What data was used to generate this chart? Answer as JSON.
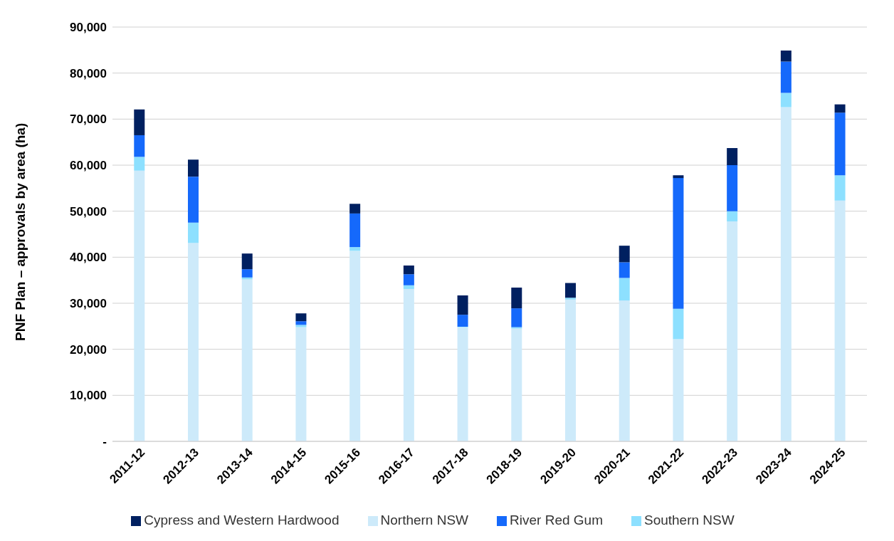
{
  "chart_data": {
    "type": "bar",
    "stacked": true,
    "ylabel": "PNF Plan – approvals by area (ha)",
    "categories": [
      "2011-12",
      "2012-13",
      "2013-14",
      "2014-15",
      "2015-16",
      "2016-17",
      "2017-18",
      "2018-19",
      "2019-20",
      "2020-21",
      "2021-22",
      "2022-23",
      "2023-24",
      "2024-25"
    ],
    "series": [
      {
        "name": "Northern NSW",
        "color": "#cdeafa",
        "values": [
          58800,
          43100,
          35200,
          24800,
          41400,
          33100,
          24800,
          24500,
          30800,
          30600,
          22200,
          47800,
          72600,
          52300
        ]
      },
      {
        "name": "Southern NSW",
        "color": "#8de0ff",
        "values": [
          3000,
          4400,
          400,
          500,
          800,
          800,
          100,
          300,
          400,
          4900,
          6600,
          2200,
          3100,
          5500
        ]
      },
      {
        "name": "River Red Gum",
        "color": "#1569fb",
        "values": [
          4700,
          10000,
          1800,
          800,
          7300,
          2400,
          2600,
          4100,
          0,
          3400,
          28400,
          10000,
          6800,
          13600
        ]
      },
      {
        "name": "Cypress and Western Hardwood",
        "color": "#002060",
        "values": [
          5600,
          3700,
          3400,
          1700,
          2100,
          1900,
          4200,
          4500,
          3200,
          3600,
          600,
          3700,
          2400,
          1800
        ]
      }
    ],
    "ylim": [
      0,
      90000
    ],
    "yticks": [
      {
        "value": 0,
        "label": "-"
      },
      {
        "value": 10000,
        "label": "10,000"
      },
      {
        "value": 20000,
        "label": "20,000"
      },
      {
        "value": 30000,
        "label": "30,000"
      },
      {
        "value": 40000,
        "label": "40,000"
      },
      {
        "value": 50000,
        "label": "50,000"
      },
      {
        "value": 60000,
        "label": "60,000"
      },
      {
        "value": 70000,
        "label": "70,000"
      },
      {
        "value": 80000,
        "label": "80,000"
      },
      {
        "value": 90000,
        "label": "90,000"
      }
    ],
    "grid": "y",
    "legend": "bottom"
  }
}
